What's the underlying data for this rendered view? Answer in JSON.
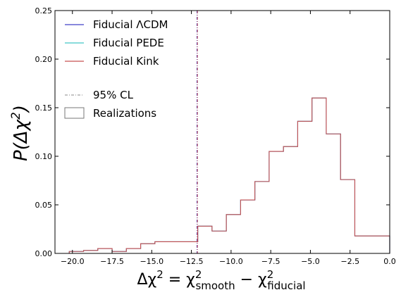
{
  "chart_data": {
    "type": "histogram",
    "title": "",
    "xlabel": {
      "main": "Δχ",
      "sup1": "2",
      "eq": " = χ",
      "sub1": "smooth",
      "sup2": "2",
      "minus": " − χ",
      "sub2": "fiducial",
      "sup3": "2"
    },
    "ylabel": {
      "main": "P(Δχ",
      "sup": "2",
      "close": ")"
    },
    "xlim": [
      -21.1,
      0.0
    ],
    "ylim": [
      0.0,
      0.25
    ],
    "xticks": [
      -20.0,
      -17.5,
      -15.0,
      -12.5,
      -10.0,
      -7.5,
      -5.0,
      -2.5,
      0.0
    ],
    "xtick_labels": [
      "−20.0",
      "−17.5",
      "−15.0",
      "−12.5",
      "−10.0",
      "−7.5",
      "−5.0",
      "−2.5",
      "0.0"
    ],
    "yticks": [
      0.0,
      0.05,
      0.1,
      0.15,
      0.2,
      0.25
    ],
    "ytick_labels": [
      "0.00",
      "0.05",
      "0.10",
      "0.15",
      "0.20",
      "0.25"
    ],
    "bin_edges": [
      -21.1,
      -20.2,
      -19.3,
      -18.4,
      -17.5,
      -16.6,
      -15.7,
      -14.8,
      -13.9,
      -13.0,
      -12.1,
      -11.2,
      -10.3,
      -9.4,
      -8.5,
      -7.6,
      -6.7,
      -5.8,
      -4.9,
      -4.0,
      -3.1,
      -2.2,
      -1.3,
      -0.4,
      0.0
    ],
    "series": [
      {
        "name": "Fiducial ΛCDM",
        "color": "#4040c8",
        "counts": [
          0.0,
          0.002,
          0.003,
          0.005,
          0.002,
          0.005,
          0.01,
          0.012,
          0.012,
          0.012,
          0.028,
          0.023,
          0.04,
          0.055,
          0.074,
          0.105,
          0.11,
          0.136,
          0.16,
          0.123,
          0.076,
          0.018,
          0.018,
          0.018
        ]
      },
      {
        "name": "Fiducial PEDE",
        "color": "#40c8c8",
        "counts": [
          0.0,
          0.002,
          0.003,
          0.005,
          0.002,
          0.005,
          0.01,
          0.012,
          0.012,
          0.012,
          0.028,
          0.023,
          0.04,
          0.055,
          0.074,
          0.105,
          0.11,
          0.136,
          0.16,
          0.123,
          0.076,
          0.018,
          0.018,
          0.018
        ]
      },
      {
        "name": "Fiducial Kink",
        "color": "#c85050",
        "counts": [
          0.0,
          0.002,
          0.003,
          0.005,
          0.002,
          0.005,
          0.01,
          0.012,
          0.012,
          0.012,
          0.028,
          0.023,
          0.04,
          0.055,
          0.074,
          0.105,
          0.11,
          0.136,
          0.16,
          0.123,
          0.076,
          0.018,
          0.018,
          0.018
        ]
      }
    ],
    "cl_lines": [
      {
        "x": -12.15,
        "color": "#4040c8"
      },
      {
        "x": -12.12,
        "color": "#c85050"
      }
    ],
    "legend": {
      "placement": "top-left",
      "cl_label": "95% CL",
      "cl_color": "#888888",
      "realizations_label": "Realizations"
    },
    "grid": false
  }
}
